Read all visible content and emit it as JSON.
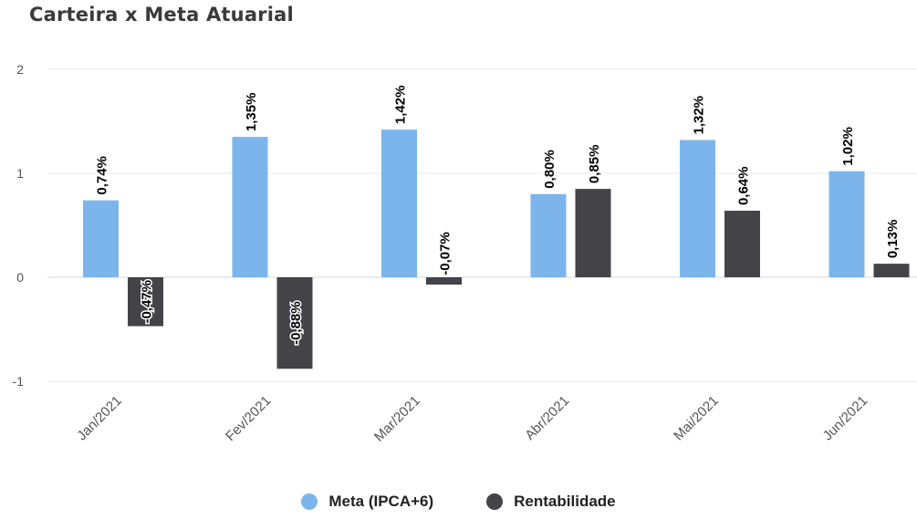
{
  "title": "Carteira x Meta Atuarial",
  "colors": {
    "meta": "#7cb5ec",
    "rentabilidade": "#434348"
  },
  "chart_data": {
    "type": "bar",
    "title": "Carteira x Meta Atuarial",
    "xlabel": "",
    "ylabel": "",
    "ylim": [
      -1,
      2
    ],
    "yticks": [
      2,
      1,
      0,
      -1
    ],
    "grid": true,
    "legend_position": "bottom-center",
    "categories": [
      "Jan/2021",
      "Fev/2021",
      "Mar/2021",
      "Abr/2021",
      "Mai/2021",
      "Jun/2021"
    ],
    "series": [
      {
        "name": "Meta (IPCA+6)",
        "values": [
          0.74,
          1.35,
          1.42,
          0.8,
          1.32,
          1.02
        ],
        "labels": [
          "0,74%",
          "1,35%",
          "1,42%",
          "0,80%",
          "1,32%",
          "1,02%"
        ]
      },
      {
        "name": "Rentabilidade",
        "values": [
          -0.47,
          -0.88,
          -0.07,
          0.85,
          0.64,
          0.13
        ],
        "labels": [
          "-0,47%",
          "-0,88%",
          "-0,07%",
          "0,85%",
          "0,64%",
          "0,13%"
        ]
      }
    ]
  }
}
